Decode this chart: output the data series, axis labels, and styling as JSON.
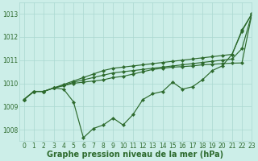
{
  "bg_color": "#cceee8",
  "line_color": "#2d6a2d",
  "xlabel": "Graphe pression niveau de la mer (hPa)",
  "ylim": [
    1007.5,
    1013.5
  ],
  "xlim": [
    -0.5,
    23
  ],
  "yticks": [
    1008,
    1009,
    1010,
    1011,
    1012,
    1013
  ],
  "xticks": [
    0,
    1,
    2,
    3,
    4,
    5,
    6,
    7,
    8,
    9,
    10,
    11,
    12,
    13,
    14,
    15,
    16,
    17,
    18,
    19,
    20,
    21,
    22,
    23
  ],
  "series": [
    [
      1009.3,
      1009.65,
      1009.65,
      1009.8,
      1009.75,
      1009.2,
      1007.65,
      1008.05,
      1008.2,
      1008.5,
      1008.2,
      1008.65,
      1009.3,
      1009.55,
      1009.65,
      1010.05,
      1009.75,
      1009.85,
      1010.15,
      1010.55,
      1010.75,
      1011.25,
      1012.25,
      1013.0
    ],
    [
      1009.3,
      1009.65,
      1009.65,
      1009.8,
      1009.9,
      1010.0,
      1010.05,
      1010.1,
      1010.15,
      1010.25,
      1010.3,
      1010.4,
      1010.5,
      1010.6,
      1010.65,
      1010.7,
      1010.72,
      1010.75,
      1010.8,
      1010.82,
      1010.85,
      1010.87,
      1010.88,
      1013.0
    ],
    [
      1009.3,
      1009.65,
      1009.65,
      1009.8,
      1009.9,
      1010.05,
      1010.15,
      1010.25,
      1010.35,
      1010.45,
      1010.5,
      1010.55,
      1010.6,
      1010.65,
      1010.7,
      1010.75,
      1010.8,
      1010.85,
      1010.9,
      1010.95,
      1011.0,
      1011.05,
      1011.5,
      1013.0
    ],
    [
      1009.3,
      1009.65,
      1009.65,
      1009.8,
      1009.95,
      1010.1,
      1010.25,
      1010.4,
      1010.55,
      1010.65,
      1010.7,
      1010.75,
      1010.8,
      1010.85,
      1010.9,
      1010.95,
      1011.0,
      1011.05,
      1011.1,
      1011.15,
      1011.2,
      1011.25,
      1012.3,
      1013.0
    ]
  ],
  "grid_color": "#aad8d0",
  "tick_fontsize": 5.5,
  "label_fontsize": 7.0,
  "linewidth": 0.85,
  "markersize": 2.2
}
